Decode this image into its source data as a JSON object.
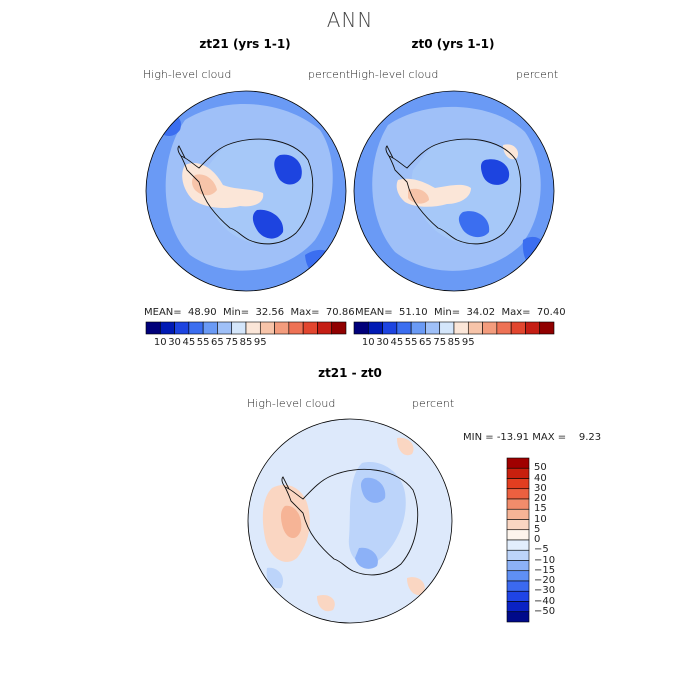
{
  "title": "ANN",
  "units_label": "percent",
  "variable_label": "High-level cloud",
  "panels": [
    {
      "title": "zt21 (yrs 1-1)",
      "stats": {
        "mean_label": "MEAN=",
        "mean": "48.90",
        "min_label": "Min=",
        "min": "32.56",
        "max_label": "Max=",
        "max": "70.86"
      }
    },
    {
      "title": "zt0 (yrs 1-1)",
      "stats": {
        "mean_label": "MEAN=",
        "mean": "51.10",
        "min_label": "Min=",
        "min": "34.02",
        "max_label": "Max=",
        "max": "70.40"
      }
    }
  ],
  "diff_panel": {
    "title": "zt21 - zt0",
    "stats": {
      "min_label": "MIN =",
      "min": "-13.91",
      "max_label": "MAX =",
      "max": "9.23"
    }
  },
  "abs_colorbar": {
    "colors": [
      "#00007a",
      "#001ab4",
      "#1d44e0",
      "#3b6ef0",
      "#6a9af5",
      "#9fc0f8",
      "#d4e6fb",
      "#fbe6d8",
      "#f7c4a9",
      "#f39c7d",
      "#ee7255",
      "#e2462f",
      "#c51e14",
      "#900000"
    ],
    "ticks": [
      "10",
      "30",
      "45",
      "55",
      "65",
      "75",
      "85",
      "95"
    ]
  },
  "diff_colorbar": {
    "colors": [
      "#000a8a",
      "#0a22c4",
      "#1f44e6",
      "#3b69f0",
      "#5f8ff4",
      "#8cb1f7",
      "#bcd4fa",
      "#e2eefd",
      "#fdf4ec",
      "#fad6c2",
      "#f6b496",
      "#f18c6b",
      "#ec6040",
      "#e23e20",
      "#c8200e",
      "#a00000"
    ],
    "ticks": [
      "50",
      "40",
      "30",
      "20",
      "15",
      "10",
      "5",
      "0",
      "−5",
      "−10",
      "−15",
      "−20",
      "−30",
      "−40",
      "−50"
    ]
  },
  "map_colors": {
    "ocean_abs": "#6a9af5",
    "land_abs": "#a6c8f8",
    "diff_base": "#dde9fb",
    "coast": "#111111"
  }
}
